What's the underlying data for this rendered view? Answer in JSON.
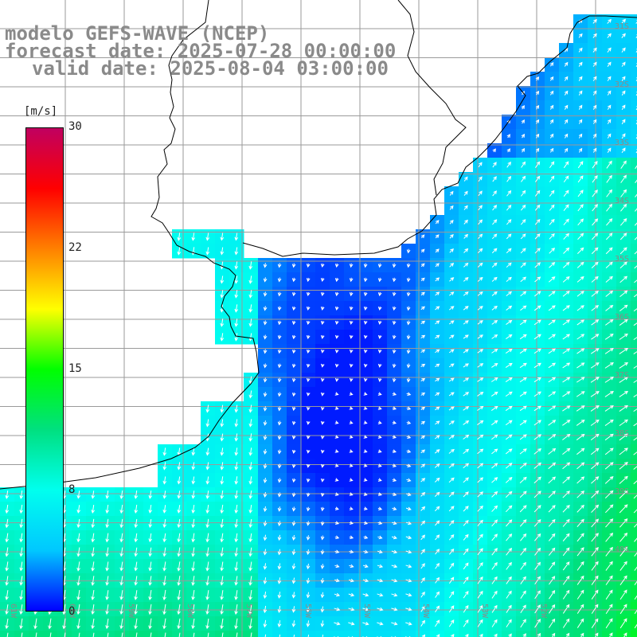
{
  "title": {
    "line1": "modelo GEFS-WAVE (NCEP)",
    "line2": "forecast date: 2025-07-28 00:00:00",
    "line3": "valid date: 2025-08-04 03:00:00"
  },
  "legend": {
    "unit": "[m/s]",
    "ticks": [
      "30",
      "22",
      "15",
      "8",
      "0"
    ],
    "min": 0,
    "max": 30,
    "colors": [
      "#0000ff",
      "#00c8ff",
      "#00ffee",
      "#00e080",
      "#00ff00",
      "#ffff00",
      "#ff8000",
      "#ff0000",
      "#c00060"
    ]
  },
  "map": {
    "variable": "wind speed with direction arrows",
    "land_color": "#ffffff",
    "coastline_color": "#000000",
    "grid_color": "#9a9a9a",
    "lat_labels": [
      "31S",
      "32S",
      "33S",
      "34S",
      "35S",
      "36S",
      "37S",
      "38S",
      "39S",
      "40S"
    ],
    "lon_labels": [
      "61W",
      "60W",
      "59W",
      "58W",
      "57W",
      "56W",
      "55W",
      "54W",
      "53W",
      "52W"
    ]
  }
}
